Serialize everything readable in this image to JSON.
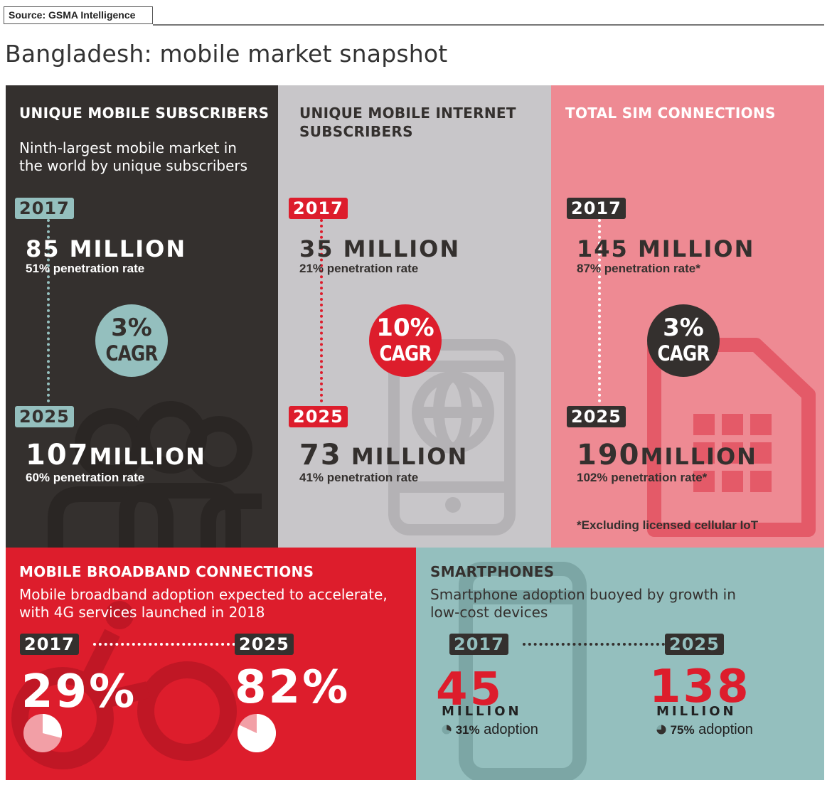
{
  "source": "Source: GSMA Intelligence",
  "title": "Bangladesh: mobile market snapshot",
  "unique_subscribers": {
    "heading": "UNIQUE MOBILE SUBSCRIBERS",
    "subtitle_line1": "Ninth-largest mobile market in",
    "subtitle_line2": "the world by unique subscribers",
    "year_start": "2017",
    "value_start": "85 MILLION",
    "rate_start": "51% penetration rate",
    "cagr_value": "3%",
    "cagr_label": "CAGR",
    "year_end": "2025",
    "value_end_number": "107",
    "value_end_unit": "MILLION",
    "rate_end": "60% penetration rate",
    "icon": "people-icon"
  },
  "internet_subscribers": {
    "heading_line1": "UNIQUE MOBILE INTERNET",
    "heading_line2": "SUBSCRIBERS",
    "year_start": "2017",
    "value_start": "35 MILLION",
    "rate_start": "21% penetration rate",
    "cagr_value": "10%",
    "cagr_label": "CAGR",
    "year_end": "2025",
    "value_end_number": "73",
    "value_end_unit": "MILLION",
    "rate_end": "41% penetration rate",
    "icon": "phone-globe-icon"
  },
  "sim_connections": {
    "heading": "TOTAL SIM CONNECTIONS",
    "year_start": "2017",
    "value_start": "145 MILLION",
    "rate_start": "87% penetration rate*",
    "cagr_value": "3%",
    "cagr_label": "CAGR",
    "year_end": "2025",
    "value_end_number": "190",
    "value_end_unit": "MILLION",
    "rate_end": "102% penetration rate*",
    "footnote": "*Excluding licensed cellular IoT",
    "icon": "sim-card-icon"
  },
  "broadband": {
    "heading": "MOBILE BROADBAND CONNECTIONS",
    "subtitle_line1": "Mobile broadband adoption expected to accelerate,",
    "subtitle_line2": "with 4G services launched in 2018",
    "year_start": "2017",
    "year_end": "2025",
    "value_start": "29%",
    "value_end": "82%",
    "share_start": 0.29,
    "share_end": 0.82,
    "icon": "network-nodes-icon"
  },
  "smartphones": {
    "heading": "SMARTPHONES",
    "subtitle_line1": "Smartphone adoption buoyed by growth in",
    "subtitle_line2": "low-cost devices",
    "year_start": "2017",
    "year_end": "2025",
    "value_start": "45",
    "value_end": "138",
    "unit": "MILLION",
    "adoption_start_pct": "31%",
    "adoption_end_pct": "75%",
    "adoption_word": "adoption",
    "share_start": 0.31,
    "share_end": 0.75,
    "icon": "smartphone-icon"
  },
  "colors": {
    "dark": "#34302e",
    "grey": "#c8c6c9",
    "pink": "#ee8a93",
    "red": "#dd1d2c",
    "teal": "#94bfbe"
  }
}
